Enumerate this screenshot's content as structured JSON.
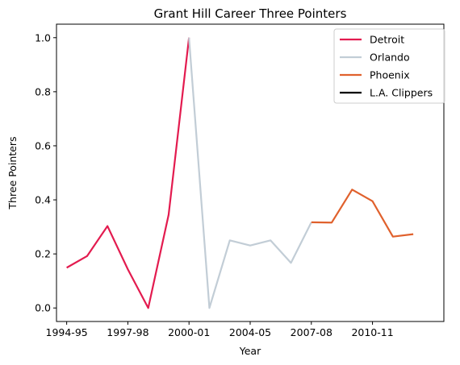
{
  "chart_data": {
    "type": "line",
    "title": "Grant Hill Career Three Pointers",
    "xlabel": "Year",
    "ylabel": "Three Pointers",
    "x_tick_labels": [
      "1994-95",
      "1997-98",
      "2000-01",
      "2004-05",
      "2007-08",
      "2010-11"
    ],
    "x_tick_positions": [
      0,
      3,
      6,
      9,
      12,
      15
    ],
    "y_ticks": [
      0.0,
      0.2,
      0.4,
      0.6,
      0.8,
      1.0
    ],
    "y_tick_labels": [
      "0.0",
      "0.2",
      "0.4",
      "0.6",
      "0.8",
      "1.0"
    ],
    "xlim": [
      -0.5,
      18.5
    ],
    "ylim": [
      -0.05,
      1.05
    ],
    "grid": false,
    "legend_position": "top-right",
    "series": [
      {
        "name": "Detroit",
        "color": "#e31b4f",
        "x": [
          0,
          1,
          2,
          3,
          4,
          5,
          6
        ],
        "y": [
          0.149,
          0.192,
          0.303,
          0.143,
          0.0,
          0.345,
          1.0
        ]
      },
      {
        "name": "Orlando",
        "color": "#c2cdd6",
        "x": [
          6,
          7,
          8,
          9,
          10,
          11,
          12
        ],
        "y": [
          1.0,
          0.0,
          0.25,
          0.231,
          0.25,
          0.167,
          0.317
        ]
      },
      {
        "name": "Phoenix",
        "color": "#e0612d",
        "x": [
          12,
          13,
          14,
          15,
          16,
          17
        ],
        "y": [
          0.317,
          0.316,
          0.438,
          0.395,
          0.264,
          0.273
        ]
      },
      {
        "name": "L.A. Clippers",
        "color": "#000000",
        "x": [],
        "y": []
      }
    ]
  }
}
